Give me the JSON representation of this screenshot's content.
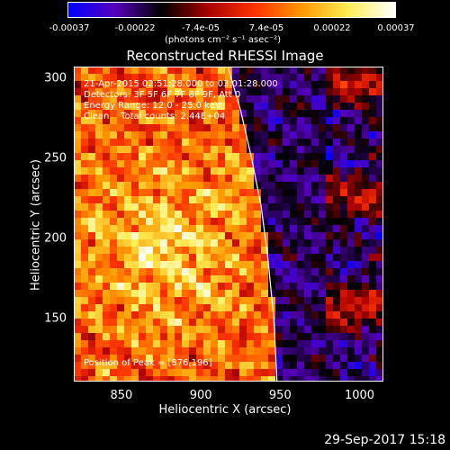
{
  "colorbar": {
    "tick_labels": [
      "-0.00037",
      "-0.00022",
      "-7.4e-05",
      "7.4e-05",
      "0.00022",
      "0.00037"
    ],
    "units": "(photons cm⁻² s⁻¹ asec⁻²)",
    "stops": [
      "#0000ff",
      "#5500bb",
      "#000000",
      "#aa0000",
      "#ff3300",
      "#ff9900",
      "#ffee55",
      "#ffffff"
    ]
  },
  "title": "Reconstructed RHESSI Image",
  "info_lines": [
    "21-Apr-2015 02:51:28.000 to 03:01:28.000",
    "Detectors: 3F 5F 6F 7F 8F 9F, Att 0",
    "Energy Range: 12.0 - 25.0 keV",
    "Clean    Total counts: 2.44E+04"
  ],
  "peak_label": "Position of Peak = [876,196]",
  "timestamp": "29-Sep-2017 15:18",
  "chart_data": {
    "type": "heatmap",
    "title": "Reconstructed RHESSI Image",
    "xlabel": "Heliocentric X (arcsec)",
    "ylabel": "Heliocentric Y (arcsec)",
    "xlim": [
      820,
      1015
    ],
    "ylim": [
      111,
      307
    ],
    "x_ticks": [
      850,
      900,
      950,
      1000
    ],
    "y_ticks": [
      150,
      200,
      250,
      300
    ],
    "color_range": [
      -0.00037,
      0.00037
    ],
    "peak_position": [
      876,
      196
    ],
    "limb_curve": {
      "x": [
        917,
        925,
        932,
        938,
        942,
        946,
        948
      ],
      "y": [
        307,
        280,
        250,
        220,
        190,
        150,
        111
      ]
    },
    "grid": false
  }
}
